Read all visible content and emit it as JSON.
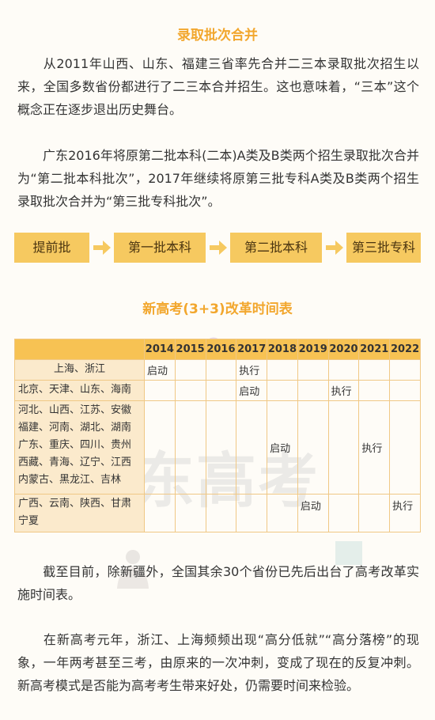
{
  "section1_title": "录取批次合并",
  "paragraph1": "从2011年山西、山东、福建三省率先合并二三本录取批次招生以来，全国多数省份都进行了二三本合并招生。这也意味着，“三本”这个概念正在逐步退出历史舞台。",
  "paragraph2": "广东2016年将原第二批本科(二本)A类及B类两个招生录取批次合并为“第二批本科批次”，2017年继续将原第三批专科A类及B类两个招生录取批次合并为“第三批专科批次”。",
  "flow": {
    "steps": [
      "提前批",
      "第一批本科",
      "第二批本科",
      "第三批专科"
    ]
  },
  "section2_title": "新高考(3+3)改革时间表",
  "table": {
    "years": [
      "2014",
      "2015",
      "2016",
      "2017",
      "2018",
      "2019",
      "2020",
      "2021",
      "2022"
    ],
    "rows": [
      {
        "region_lines": [
          "上海、浙江"
        ],
        "start": "启动",
        "exec": "执行"
      },
      {
        "region_lines": [
          "北京、天津、山东、海南"
        ],
        "start": "启动",
        "exec": "执行"
      },
      {
        "region_lines": [
          "河北、山西、江苏、安徽",
          "福建、河南、湖北、湖南",
          "广东、重庆、四川、贵州",
          "西藏、青海、辽宁、江西",
          "内蒙古、黑龙江、吉林"
        ],
        "start": "启动",
        "exec": "执行"
      },
      {
        "region_lines": [
          "广西、云南、陕西、甘肃",
          "宁夏"
        ],
        "start": "启动",
        "exec": "执行"
      }
    ]
  },
  "watermark": "东高考",
  "paragraph3": "截至目前，除新疆外，全国其余30个省份已先后出台了高考改革实施时间表。",
  "paragraph4": "在新高考元年，浙江、上海频频出现“高分低就”“高分落榜”的现象，一年两考甚至三考，由原来的一次冲刺，变成了现在的反复冲刺。新高考模式是否能为高考考生带来好处，仍需要时间来检验。"
}
